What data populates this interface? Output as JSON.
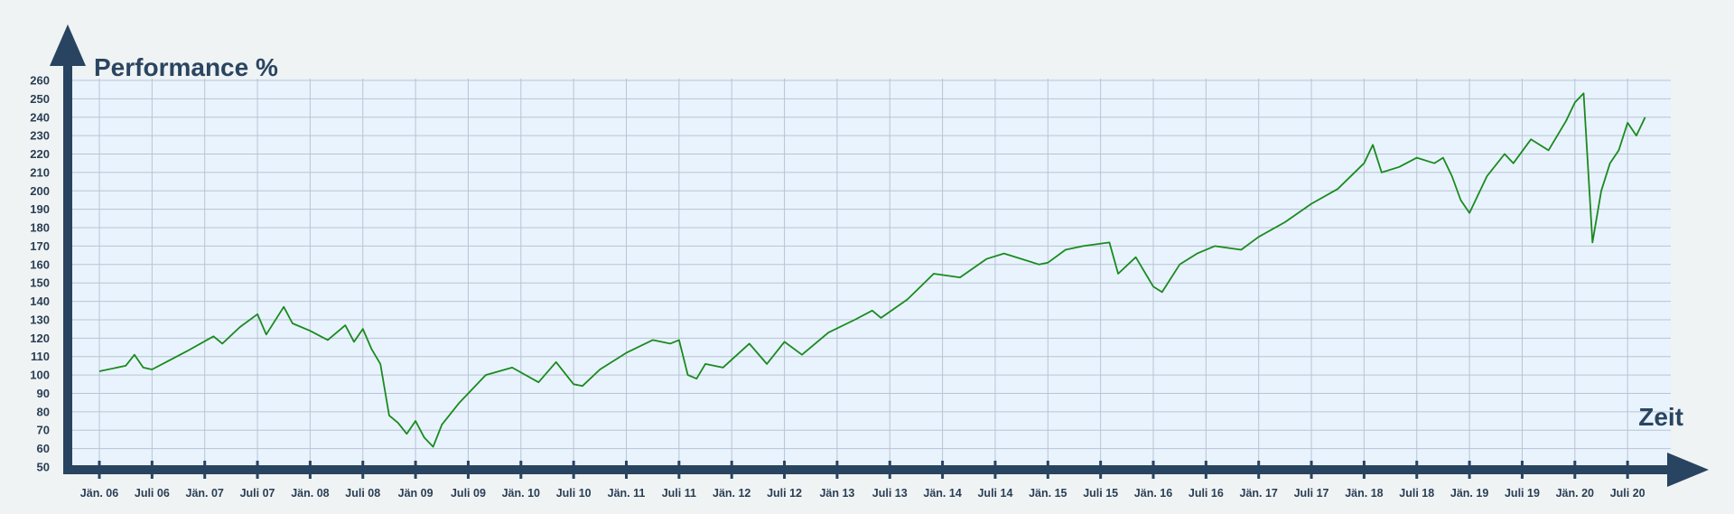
{
  "colors": {
    "background": "#eff3f4",
    "plot_area": "#e9f3fd",
    "grid": "#b7c4d2",
    "axis": "#284460",
    "series": "#1a8a1f"
  },
  "chart_data": {
    "type": "line",
    "title": "",
    "ylabel": "Performance %",
    "xlabel": "Zeit",
    "ylim": [
      50,
      260
    ],
    "yticks": [
      50,
      60,
      70,
      80,
      90,
      100,
      110,
      120,
      130,
      140,
      150,
      160,
      170,
      180,
      190,
      200,
      210,
      220,
      230,
      240,
      250,
      260
    ],
    "xlim": [
      "2006-01",
      "2020-10"
    ],
    "xticks": [
      {
        "date": "2006-01",
        "label": "Jän. 06"
      },
      {
        "date": "2006-07",
        "label": "Juli 06"
      },
      {
        "date": "2007-01",
        "label": "Jän. 07"
      },
      {
        "date": "2007-07",
        "label": "Juli 07"
      },
      {
        "date": "2008-01",
        "label": "Jän. 08"
      },
      {
        "date": "2008-07",
        "label": "Juli 08"
      },
      {
        "date": "2009-01",
        "label": "Jän 09"
      },
      {
        "date": "2009-07",
        "label": "Juli 09"
      },
      {
        "date": "2010-01",
        "label": "Jän. 10"
      },
      {
        "date": "2010-07",
        "label": "Juli 10"
      },
      {
        "date": "2011-01",
        "label": "Jän. 11"
      },
      {
        "date": "2011-07",
        "label": "Juli 11"
      },
      {
        "date": "2012-01",
        "label": "Jän. 12"
      },
      {
        "date": "2012-07",
        "label": "Juli 12"
      },
      {
        "date": "2013-01",
        "label": "Jän 13"
      },
      {
        "date": "2013-07",
        "label": "Juli 13"
      },
      {
        "date": "2014-01",
        "label": "Jän. 14"
      },
      {
        "date": "2014-07",
        "label": "Juli 14"
      },
      {
        "date": "2015-01",
        "label": "Jän. 15"
      },
      {
        "date": "2015-07",
        "label": "Juli 15"
      },
      {
        "date": "2016-01",
        "label": "Jän. 16"
      },
      {
        "date": "2016-07",
        "label": "Juli 16"
      },
      {
        "date": "2017-01",
        "label": "Jän. 17"
      },
      {
        "date": "2017-07",
        "label": "Juli 17"
      },
      {
        "date": "2018-01",
        "label": "Jän. 18"
      },
      {
        "date": "2018-07",
        "label": "Juli 18"
      },
      {
        "date": "2019-01",
        "label": "Jän. 19"
      },
      {
        "date": "2019-07",
        "label": "Juli 19"
      },
      {
        "date": "2020-01",
        "label": "Jän. 20"
      },
      {
        "date": "2020-07",
        "label": "Juli 20"
      }
    ],
    "grid": true,
    "legend": "none",
    "series": [
      {
        "color": "#1a8a1f",
        "x": [
          "2006-01",
          "2006-04",
          "2006-05",
          "2006-06",
          "2006-07",
          "2006-09",
          "2006-11",
          "2007-02",
          "2007-03",
          "2007-05",
          "2007-07",
          "2007-08",
          "2007-10",
          "2007-11",
          "2008-01",
          "2008-03",
          "2008-05",
          "2008-06",
          "2008-07",
          "2008-08",
          "2008-09",
          "2008-10",
          "2008-11",
          "2008-12",
          "2009-01",
          "2009-02",
          "2009-03",
          "2009-04",
          "2009-06",
          "2009-09",
          "2009-12",
          "2010-03",
          "2010-05",
          "2010-07",
          "2010-08",
          "2010-10",
          "2011-01",
          "2011-04",
          "2011-06",
          "2011-07",
          "2011-08",
          "2011-09",
          "2011-10",
          "2011-12",
          "2012-03",
          "2012-05",
          "2012-07",
          "2012-09",
          "2012-12",
          "2013-03",
          "2013-05",
          "2013-06",
          "2013-09",
          "2013-12",
          "2014-03",
          "2014-06",
          "2014-08",
          "2014-12",
          "2015-01",
          "2015-03",
          "2015-05",
          "2015-08",
          "2015-09",
          "2015-11",
          "2016-01",
          "2016-02",
          "2016-04",
          "2016-06",
          "2016-08",
          "2016-11",
          "2017-01",
          "2017-04",
          "2017-07",
          "2017-10",
          "2018-01",
          "2018-02",
          "2018-03",
          "2018-05",
          "2018-07",
          "2018-09",
          "2018-10",
          "2018-11",
          "2018-12",
          "2019-01",
          "2019-03",
          "2019-05",
          "2019-06",
          "2019-08",
          "2019-10",
          "2019-12",
          "2020-01",
          "2020-02",
          "2020-03",
          "2020-04",
          "2020-05",
          "2020-06",
          "2020-07",
          "2020-08",
          "2020-09"
        ],
        "y": [
          102,
          105,
          111,
          104,
          103,
          108,
          113,
          121,
          117,
          126,
          133,
          122,
          137,
          128,
          124,
          119,
          127,
          118,
          125,
          114,
          106,
          78,
          74,
          68,
          75,
          66,
          61,
          73,
          85,
          100,
          104,
          96,
          107,
          95,
          94,
          103,
          112,
          119,
          117,
          119,
          100,
          98,
          106,
          104,
          117,
          106,
          118,
          111,
          123,
          130,
          135,
          131,
          141,
          155,
          153,
          163,
          166,
          160,
          161,
          168,
          170,
          172,
          155,
          164,
          148,
          145,
          160,
          166,
          170,
          168,
          175,
          183,
          193,
          201,
          215,
          225,
          210,
          213,
          218,
          215,
          218,
          208,
          195,
          188,
          208,
          220,
          215,
          228,
          222,
          238,
          248,
          253,
          172,
          200,
          215,
          222,
          237,
          230,
          240
        ]
      }
    ]
  }
}
